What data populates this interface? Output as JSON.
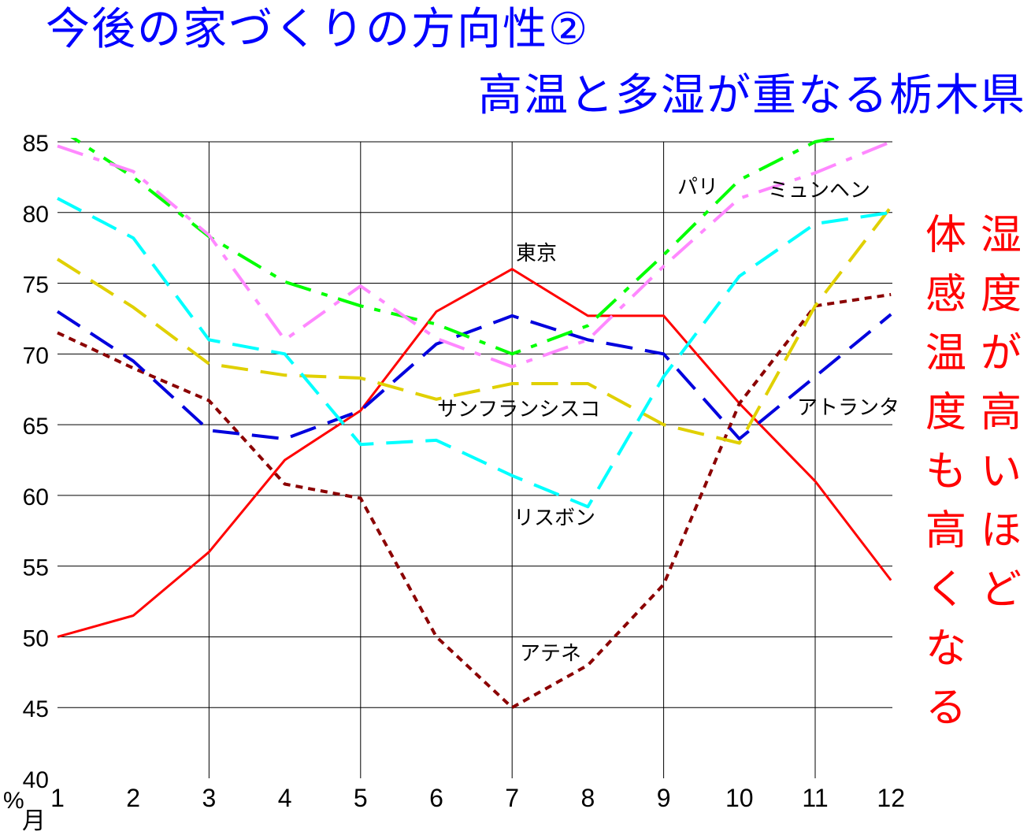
{
  "title": {
    "line1": "今後の家づくりの方向性②",
    "line2": "高温と多湿が重なる栃木県"
  },
  "side_text": {
    "col1": "湿度が高いほど",
    "col2": "体感温度も高くなる"
  },
  "chart_data": {
    "type": "line",
    "x": [
      1,
      2,
      3,
      4,
      5,
      6,
      7,
      8,
      9,
      10,
      11,
      12
    ],
    "xlabel": "月",
    "ylabel": "%",
    "ylim": [
      40,
      85
    ],
    "yticks": [
      40,
      45,
      50,
      55,
      60,
      65,
      70,
      75,
      80,
      85
    ],
    "grid": true,
    "series": [
      {
        "name": "東京",
        "color": "#ff0000",
        "dash": "solid",
        "values": [
          50.0,
          51.5,
          56.0,
          62.5,
          66.0,
          73.0,
          76.0,
          72.7,
          72.7,
          66.5,
          61.0,
          54.0
        ]
      },
      {
        "name": "アテネ",
        "color": "#8b0000",
        "dash": "short",
        "values": [
          71.5,
          69.0,
          66.7,
          60.8,
          59.8,
          50.0,
          45.0,
          48.0,
          53.7,
          66.5,
          73.4,
          74.2
        ]
      },
      {
        "name": "アトランタ",
        "color": "#0000dd",
        "dash": "long",
        "values": [
          73.0,
          69.5,
          64.6,
          64.0,
          66.0,
          70.7,
          72.7,
          71.0,
          70.0,
          64.0,
          68.4,
          72.8
        ]
      },
      {
        "name": "サンフランシスコ",
        "color": "#e0d000",
        "dash": "long",
        "values": [
          76.7,
          73.3,
          69.3,
          68.5,
          68.3,
          66.8,
          67.9,
          67.9,
          65.0,
          63.7,
          73.4,
          80.4
        ]
      },
      {
        "name": "リスボン",
        "color": "#00ffff",
        "dash": "long",
        "values": [
          81.0,
          78.2,
          71.0,
          70.0,
          63.6,
          63.9,
          61.4,
          59.2,
          68.4,
          75.5,
          79.2,
          80.0
        ]
      },
      {
        "name": "パリ",
        "color": "#00ff00",
        "dash": "dashdot",
        "values": [
          86.0,
          82.5,
          78.3,
          75.1,
          73.4,
          72.1,
          70.0,
          72.0,
          77.0,
          82.3,
          85.0,
          86.0
        ]
      },
      {
        "name": "ミュンヘン",
        "color": "#ff88ff",
        "dash": "dashdot",
        "values": [
          84.7,
          82.9,
          78.4,
          71.0,
          74.8,
          71.1,
          69.1,
          71.0,
          76.2,
          81.0,
          82.8,
          85.0
        ]
      }
    ],
    "labels": [
      {
        "text": "東京",
        "series": "東京"
      },
      {
        "text": "アテネ",
        "series": "アテネ"
      },
      {
        "text": "アトランタ",
        "series": "アトランタ"
      },
      {
        "text": "サンフランシスコ",
        "series": "サンフランシスコ"
      },
      {
        "text": "リスボン",
        "series": "リスボン"
      },
      {
        "text": "パリ",
        "series": "パリ"
      },
      {
        "text": "ミュンヘン",
        "series": "ミュンヘン"
      }
    ]
  }
}
